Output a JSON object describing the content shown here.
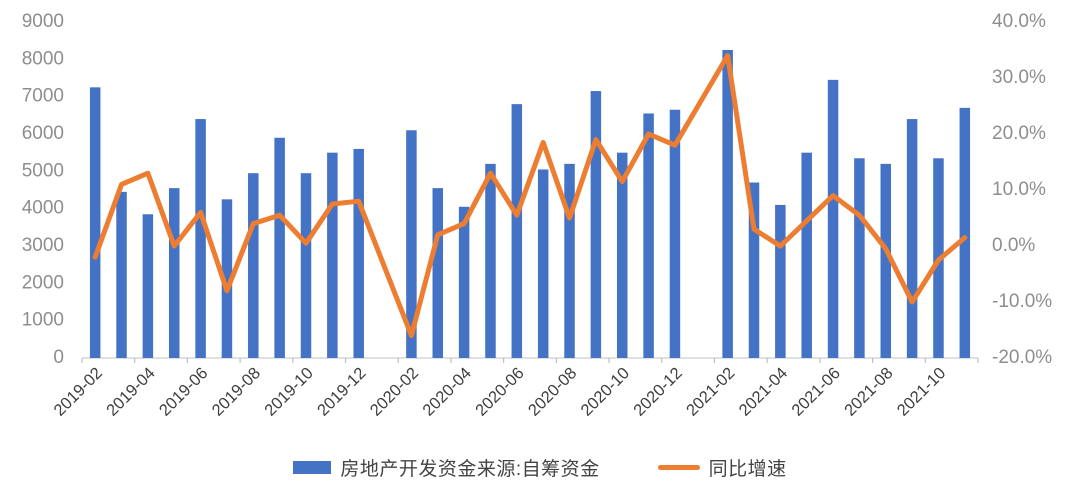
{
  "chart_data": {
    "type": "bar+line",
    "categories": [
      "2019-02",
      "2019-03",
      "2019-04",
      "2019-05",
      "2019-06",
      "2019-07",
      "2019-08",
      "2019-09",
      "2019-10",
      "2019-11",
      "2019-12",
      "2020-01",
      "2020-02",
      "2020-03",
      "2020-04",
      "2020-05",
      "2020-06",
      "2020-07",
      "2020-08",
      "2020-09",
      "2020-10",
      "2020-11",
      "2020-12",
      "2021-01",
      "2021-02",
      "2021-03",
      "2021-04",
      "2021-05",
      "2021-06",
      "2021-07",
      "2021-08",
      "2021-09",
      "2021-10",
      "2021-11"
    ],
    "series": [
      {
        "name": "房地产开发资金来源:自筹资金",
        "type": "bar",
        "axis": "left",
        "color": "#4472C4",
        "values": [
          7250,
          4450,
          3850,
          4550,
          6400,
          4250,
          4950,
          5900,
          4950,
          5500,
          5600,
          null,
          6100,
          4550,
          4050,
          5200,
          6800,
          5050,
          5200,
          7150,
          5500,
          6550,
          6650,
          null,
          8250,
          4700,
          4100,
          5500,
          7450,
          5350,
          5200,
          6400,
          5350,
          6700
        ]
      },
      {
        "name": "同比增速",
        "type": "line",
        "axis": "right",
        "color": "#ED7D31",
        "values": [
          -2,
          11,
          13,
          0,
          6,
          -8,
          4,
          5.5,
          0.5,
          7.5,
          8,
          null,
          -16,
          2,
          4,
          13,
          5.5,
          18.5,
          5,
          19,
          11.5,
          20,
          18,
          null,
          34,
          3,
          0,
          4.5,
          9,
          5.5,
          -0.5,
          -10,
          -2.5,
          1.5
        ]
      }
    ],
    "left_axis": {
      "min": 0,
      "max": 9000,
      "step": 1000,
      "ticks": [
        "0",
        "1000",
        "2000",
        "3000",
        "4000",
        "5000",
        "6000",
        "7000",
        "8000",
        "9000"
      ]
    },
    "right_axis": {
      "min": -20,
      "max": 40,
      "step": 10,
      "ticks": [
        "-20.0%",
        "-10.0%",
        "0.0%",
        "10.0%",
        "20.0%",
        "30.0%",
        "40.0%"
      ]
    },
    "x_labels": [
      "2019-02",
      "2019-04",
      "2019-06",
      "2019-08",
      "2019-10",
      "2019-12",
      "2020-02",
      "2020-04",
      "2020-06",
      "2020-08",
      "2020-10",
      "2020-12",
      "2021-02",
      "2021-04",
      "2021-06",
      "2021-08",
      "2021-10"
    ],
    "legend_position": "bottom",
    "grid": false
  },
  "legend": {
    "bar_label": "房地产开发资金来源:自筹资金",
    "line_label": "同比增速"
  },
  "colors": {
    "bar": "#4472C4",
    "line": "#ED7D31",
    "axis_line": "#d6d6d6",
    "tick_mark": "#bfbfbf",
    "y_label": "#8e8e8e",
    "x_label": "#3f3f3f"
  }
}
